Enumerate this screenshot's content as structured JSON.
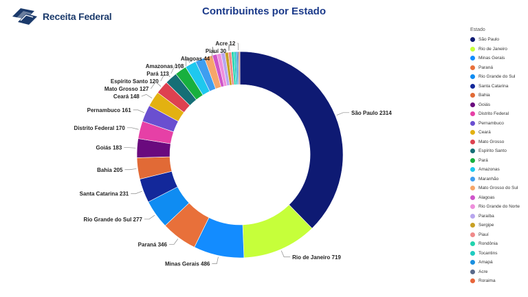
{
  "header": {
    "logo_text": "Receita Federal",
    "title": "Contribuintes por Estado"
  },
  "legend": {
    "title": "Estado",
    "items": [
      {
        "label": "São Paulo",
        "color": "#0e1a73"
      },
      {
        "label": "Rio de Janeiro",
        "color": "#c6ff3a"
      },
      {
        "label": "Minas Gerais",
        "color": "#138cff"
      },
      {
        "label": "Paraná",
        "color": "#e8703a"
      },
      {
        "label": "Rio Grande do Sul",
        "color": "#0f8cf2"
      },
      {
        "label": "Santa Catarina",
        "color": "#13289a"
      },
      {
        "label": "Bahia",
        "color": "#e16a36"
      },
      {
        "label": "Goiás",
        "color": "#6a0a7e"
      },
      {
        "label": "Distrito Federal",
        "color": "#e640a6"
      },
      {
        "label": "Pernambuco",
        "color": "#6a4fd0"
      },
      {
        "label": "Ceará",
        "color": "#e3b111"
      },
      {
        "label": "Mato Grosso",
        "color": "#de4150"
      },
      {
        "label": "Espírito Santo",
        "color": "#166f76"
      },
      {
        "label": "Pará",
        "color": "#18b03e"
      },
      {
        "label": "Amazonas",
        "color": "#1ec8ee"
      },
      {
        "label": "Maranhão",
        "color": "#3e9ef0"
      },
      {
        "label": "Mato Grosso do Sul",
        "color": "#f6a66a"
      },
      {
        "label": "Alagoas",
        "color": "#cf55ca"
      },
      {
        "label": "Rio Grande do Norte",
        "color": "#ee90dc"
      },
      {
        "label": "Paraíba",
        "color": "#b8a6ee"
      },
      {
        "label": "Sergipe",
        "color": "#c8a024"
      },
      {
        "label": "Piauí",
        "color": "#f08a8a"
      },
      {
        "label": "Rondônia",
        "color": "#22d3ad"
      },
      {
        "label": "Tocantins",
        "color": "#1fcbc0"
      },
      {
        "label": "Amapá",
        "color": "#1a8fe0"
      },
      {
        "label": "Acre",
        "color": "#5a6a8a"
      },
      {
        "label": "Roraima",
        "color": "#e8653a"
      }
    ]
  },
  "chart_data": {
    "type": "pie",
    "style": "donut",
    "title": "Contribuintes por Estado",
    "slices": [
      {
        "name": "São Paulo",
        "value": 2314,
        "color": "#0e1a73",
        "label": "São Paulo 2314"
      },
      {
        "name": "Rio de Janeiro",
        "value": 719,
        "color": "#c6ff3a",
        "label": "Rio de Janeiro 719"
      },
      {
        "name": "Minas Gerais",
        "value": 486,
        "color": "#138cff",
        "label": "Minas Gerais 486"
      },
      {
        "name": "Paraná",
        "value": 346,
        "color": "#e8703a",
        "label": "Paraná 346"
      },
      {
        "name": "Rio Grande do Sul",
        "value": 277,
        "color": "#0f8cf2",
        "label": "Rio Grande do Sul 277"
      },
      {
        "name": "Santa Catarina",
        "value": 231,
        "color": "#13289a",
        "label": "Santa Catarina 231"
      },
      {
        "name": "Bahia",
        "value": 205,
        "color": "#e16a36",
        "label": "Bahia 205"
      },
      {
        "name": "Goiás",
        "value": 183,
        "color": "#6a0a7e",
        "label": "Goiás 183"
      },
      {
        "name": "Distrito Federal",
        "value": 170,
        "color": "#e640a6",
        "label": "Distrito Federal 170"
      },
      {
        "name": "Pernambuco",
        "value": 161,
        "color": "#6a4fd0",
        "label": "Pernambuco 161"
      },
      {
        "name": "Ceará",
        "value": 148,
        "color": "#e3b111",
        "label": "Ceará 148"
      },
      {
        "name": "Mato Grosso",
        "value": 127,
        "color": "#de4150",
        "label": "Mato Grosso 127"
      },
      {
        "name": "Espírito Santo",
        "value": 120,
        "color": "#166f76",
        "label": "Espírito Santo 120"
      },
      {
        "name": "Pará",
        "value": 113,
        "color": "#18b03e",
        "label": "Pará 113"
      },
      {
        "name": "Amazonas",
        "value": 108,
        "color": "#1ec8ee",
        "label": "Amazonas 108"
      },
      {
        "name": "Maranhão",
        "value": 90,
        "color": "#3e9ef0",
        "label": ""
      },
      {
        "name": "Mato Grosso do Sul",
        "value": 80,
        "color": "#f6a66a",
        "label": ""
      },
      {
        "name": "Alagoas",
        "value": 44,
        "color": "#cf55ca",
        "label": "Alagoas 44"
      },
      {
        "name": "Rio Grande do Norte",
        "value": 40,
        "color": "#ee90dc",
        "label": ""
      },
      {
        "name": "Paraíba",
        "value": 38,
        "color": "#b8a6ee",
        "label": ""
      },
      {
        "name": "Sergipe",
        "value": 32,
        "color": "#c8a024",
        "label": ""
      },
      {
        "name": "Piauí",
        "value": 30,
        "color": "#f08a8a",
        "label": "Piauí 30"
      },
      {
        "name": "Rondônia",
        "value": 24,
        "color": "#22d3ad",
        "label": ""
      },
      {
        "name": "Tocantins",
        "value": 20,
        "color": "#1fcbc0",
        "label": ""
      },
      {
        "name": "Amapá",
        "value": 15,
        "color": "#1a8fe0",
        "label": ""
      },
      {
        "name": "Acre",
        "value": 12,
        "color": "#5a6a8a",
        "label": "Acre 12"
      },
      {
        "name": "Roraima",
        "value": 10,
        "color": "#e8653a",
        "label": ""
      }
    ]
  }
}
